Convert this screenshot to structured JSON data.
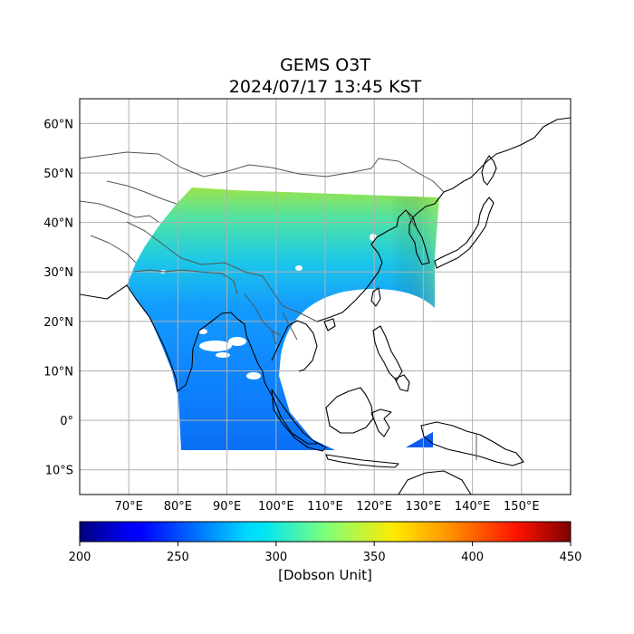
{
  "figure": {
    "title_line1": "GEMS O3T",
    "title_line2": "2024/07/17 13:45 KST"
  },
  "map": {
    "lon_range": [
      60,
      160
    ],
    "lat_range": [
      -15,
      65
    ],
    "lon_ticks": [
      {
        "value": 70,
        "label": "70°E"
      },
      {
        "value": 80,
        "label": "80°E"
      },
      {
        "value": 90,
        "label": "90°E"
      },
      {
        "value": 100,
        "label": "100°E"
      },
      {
        "value": 110,
        "label": "110°E"
      },
      {
        "value": 120,
        "label": "120°E"
      },
      {
        "value": 130,
        "label": "130°E"
      },
      {
        "value": 140,
        "label": "140°E"
      },
      {
        "value": 150,
        "label": "150°E"
      }
    ],
    "lat_ticks": [
      {
        "value": 60,
        "label": "60°N"
      },
      {
        "value": 50,
        "label": "50°N"
      },
      {
        "value": 40,
        "label": "40°N"
      },
      {
        "value": 30,
        "label": "30°N"
      },
      {
        "value": 20,
        "label": "20°N"
      },
      {
        "value": 10,
        "label": "10°N"
      },
      {
        "value": 0,
        "label": "0°"
      },
      {
        "value": -10,
        "label": "10°S"
      }
    ],
    "grid": true
  },
  "colorbar": {
    "min": 200,
    "max": 450,
    "colormap": "jet",
    "ticks": [
      {
        "value": 200,
        "label": "200"
      },
      {
        "value": 250,
        "label": "250"
      },
      {
        "value": 300,
        "label": "300"
      },
      {
        "value": 350,
        "label": "350"
      },
      {
        "value": 400,
        "label": "400"
      },
      {
        "value": 450,
        "label": "450"
      }
    ],
    "label": "[Dobson Unit]"
  },
  "colors": {
    "high_lat_ozone": "#8fe052",
    "mid_lat_ozone": "#1ee0ce",
    "low_lat_ozone": "#0f93ff",
    "tropical_ozone": "#0a6cf5"
  }
}
